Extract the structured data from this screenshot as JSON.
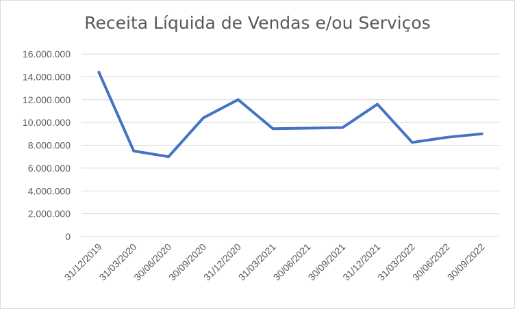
{
  "chart_data": {
    "type": "line",
    "title": "Receita Líquida de Vendas e/ou Serviços",
    "xlabel": "",
    "ylabel": "",
    "categories": [
      "31/12/2019",
      "31/03/2020",
      "30/06/2020",
      "30/09/2020",
      "31/12/2020",
      "31/03/2021",
      "30/06/2021",
      "30/09/2021",
      "31/12/2021",
      "31/03/2022",
      "30/06/2022",
      "30/09/2022"
    ],
    "series": [
      {
        "values": [
          14400000,
          7500000,
          7000000,
          10400000,
          12000000,
          9450000,
          9500000,
          9550000,
          11600000,
          8250000,
          8700000,
          9000000
        ],
        "color": "#4472c4"
      }
    ],
    "ylim": [
      0,
      16000000
    ],
    "yticks": [
      0,
      2000000,
      4000000,
      6000000,
      8000000,
      10000000,
      12000000,
      14000000,
      16000000
    ],
    "ytick_labels": [
      "0",
      "2.000.000",
      "4.000.000",
      "6.000.000",
      "8.000.000",
      "10.000.000",
      "12.000.000",
      "14.000.000",
      "16.000.000"
    ],
    "grid": true,
    "grid_color": "#d9d9d9",
    "legend": "none"
  }
}
